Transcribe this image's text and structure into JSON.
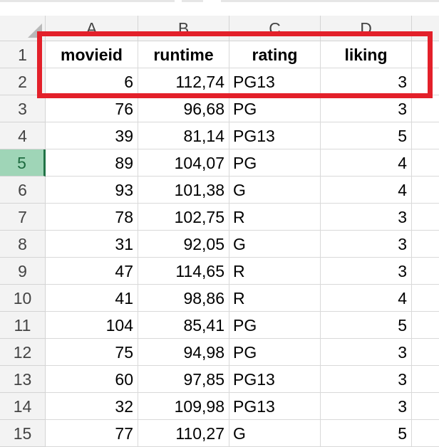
{
  "sheet": {
    "column_letters": [
      "A",
      "B",
      "C",
      "D"
    ],
    "row_numbers": [
      "1",
      "2",
      "3",
      "4",
      "5",
      "6",
      "7",
      "8",
      "9",
      "10",
      "11",
      "12",
      "13",
      "14",
      "15"
    ],
    "selected_row": "5",
    "headers": [
      "movieid",
      "runtime",
      "rating",
      "liking"
    ],
    "rows": [
      [
        "6",
        "112,74",
        "PG13",
        "3"
      ],
      [
        "76",
        "96,68",
        "PG",
        "3"
      ],
      [
        "39",
        "81,14",
        "PG13",
        "5"
      ],
      [
        "89",
        "104,07",
        "PG",
        "4"
      ],
      [
        "93",
        "101,38",
        "G",
        "4"
      ],
      [
        "78",
        "102,75",
        "R",
        "3"
      ],
      [
        "31",
        "92,05",
        "G",
        "3"
      ],
      [
        "47",
        "114,65",
        "R",
        "3"
      ],
      [
        "41",
        "98,86",
        "R",
        "4"
      ],
      [
        "104",
        "85,41",
        "PG",
        "5"
      ],
      [
        "75",
        "94,98",
        "PG",
        "3"
      ],
      [
        "60",
        "97,85",
        "PG13",
        "3"
      ],
      [
        "32",
        "109,98",
        "PG13",
        "3"
      ],
      [
        "77",
        "110,27",
        "G",
        "5"
      ]
    ]
  },
  "colors": {
    "highlight_box": "#e3202a",
    "selected_row_header": "#9fd5b7",
    "header_fill": "#f3f3f3",
    "gridline": "#d9d9d9"
  },
  "icons": {
    "select_all": "select-all-triangle-icon"
  }
}
